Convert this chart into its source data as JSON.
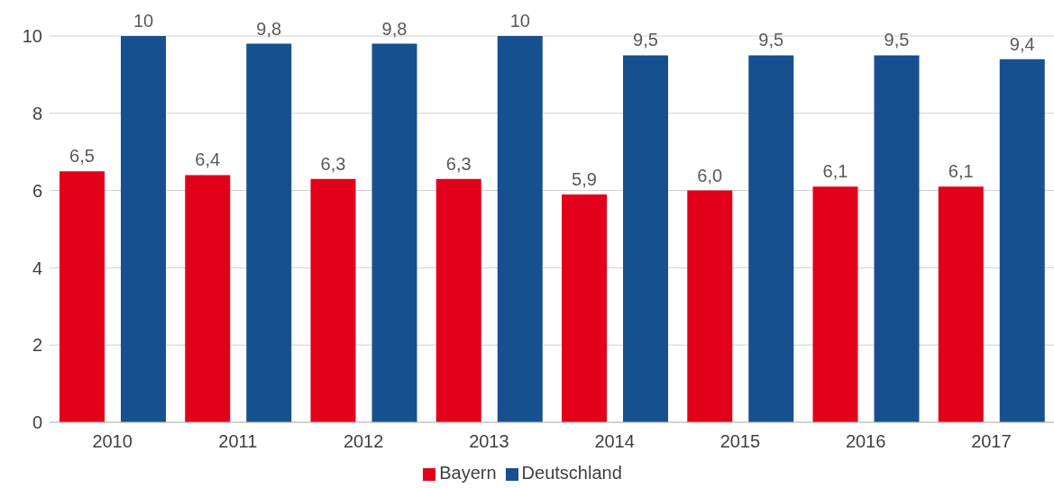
{
  "chart_data": {
    "type": "bar",
    "categories": [
      "2010",
      "2011",
      "2012",
      "2013",
      "2014",
      "2015",
      "2016",
      "2017"
    ],
    "series": [
      {
        "name": "Bayern",
        "color": "#e2001a",
        "values": [
          6.5,
          6.4,
          6.3,
          6.3,
          5.9,
          6.0,
          6.1,
          6.1
        ],
        "value_labels": [
          "6,5",
          "6,4",
          "6,3",
          "6,3",
          "5,9",
          "6,0",
          "6,1",
          "6,1"
        ]
      },
      {
        "name": "Deutschland",
        "color": "#17508f",
        "values": [
          10,
          9.8,
          9.8,
          10,
          9.5,
          9.5,
          9.5,
          9.4
        ],
        "value_labels": [
          "10",
          "9,8",
          "9,8",
          "10",
          "9,5",
          "9,5",
          "9,5",
          "9,4"
        ]
      }
    ],
    "ylim": [
      0,
      10
    ],
    "yticks": [
      0,
      2,
      4,
      6,
      8,
      10
    ],
    "grid": "y",
    "legend": "bottom"
  }
}
